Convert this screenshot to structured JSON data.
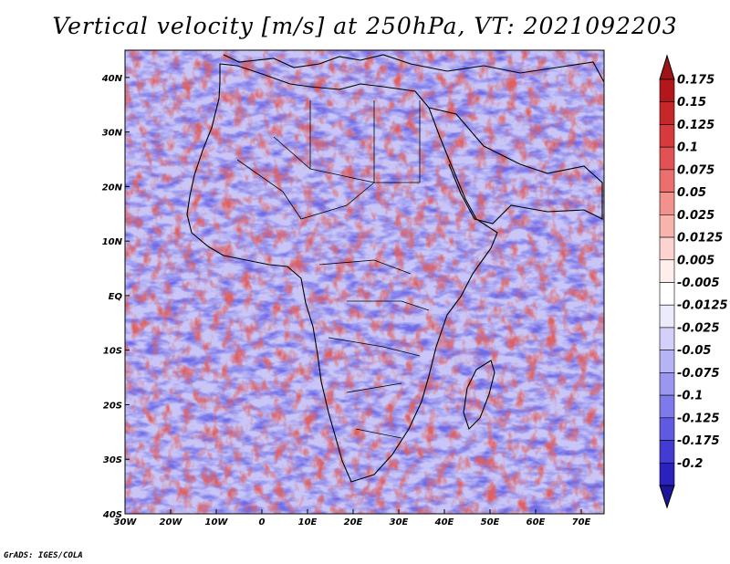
{
  "title": "Vertical velocity [m/s] at 250hPa, VT: 2021092203",
  "credit": "GrADS: IGES/COLA",
  "map": {
    "lon_range": [
      -30,
      75
    ],
    "lat_range": [
      -40,
      45
    ],
    "lon_ticks": [
      {
        "value": -30,
        "label": "30W"
      },
      {
        "value": -20,
        "label": "20W"
      },
      {
        "value": -10,
        "label": "10W"
      },
      {
        "value": 0,
        "label": "0"
      },
      {
        "value": 10,
        "label": "10E"
      },
      {
        "value": 20,
        "label": "20E"
      },
      {
        "value": 30,
        "label": "30E"
      },
      {
        "value": 40,
        "label": "40E"
      },
      {
        "value": 50,
        "label": "50E"
      },
      {
        "value": 60,
        "label": "60E"
      },
      {
        "value": 70,
        "label": "70E"
      }
    ],
    "lat_ticks": [
      {
        "value": 40,
        "label": "40N"
      },
      {
        "value": 30,
        "label": "30N"
      },
      {
        "value": 20,
        "label": "20N"
      },
      {
        "value": 10,
        "label": "10N"
      },
      {
        "value": 0,
        "label": "EQ"
      },
      {
        "value": -10,
        "label": "10S"
      },
      {
        "value": -20,
        "label": "20S"
      },
      {
        "value": -30,
        "label": "30S"
      },
      {
        "value": -40,
        "label": "40S"
      }
    ]
  },
  "colorbar": {
    "levels": [
      {
        "label": "0.175",
        "color": "#b2181b"
      },
      {
        "label": "0.15",
        "color": "#c8272a"
      },
      {
        "label": "0.125",
        "color": "#d63a3c"
      },
      {
        "label": "0.1",
        "color": "#e25153"
      },
      {
        "label": "0.075",
        "color": "#eb6f6c"
      },
      {
        "label": "0.05",
        "color": "#f3918c"
      },
      {
        "label": "0.025",
        "color": "#f8b3ad"
      },
      {
        "label": "0.0125",
        "color": "#fcd3cf"
      },
      {
        "label": "0.005",
        "color": "#feeeec"
      },
      {
        "label": "-0.005",
        "color": "#ffffff"
      },
      {
        "label": "-0.0125",
        "color": "#ecebfc"
      },
      {
        "label": "-0.025",
        "color": "#d3d1fa"
      },
      {
        "label": "-0.05",
        "color": "#b7b4f6"
      },
      {
        "label": "-0.075",
        "color": "#9b97f1"
      },
      {
        "label": "-0.1",
        "color": "#7f7aec"
      },
      {
        "label": "-0.125",
        "color": "#605ae2"
      },
      {
        "label": "-0.175",
        "color": "#433cd3"
      },
      {
        "label": "-0.2",
        "color": "#2a22bf"
      }
    ],
    "top_color": "#9e1518",
    "bottom_color": "#1c1499"
  },
  "colors": {
    "positive": "#e06060",
    "negative": "#6e6ae8",
    "coast": "#000000"
  }
}
